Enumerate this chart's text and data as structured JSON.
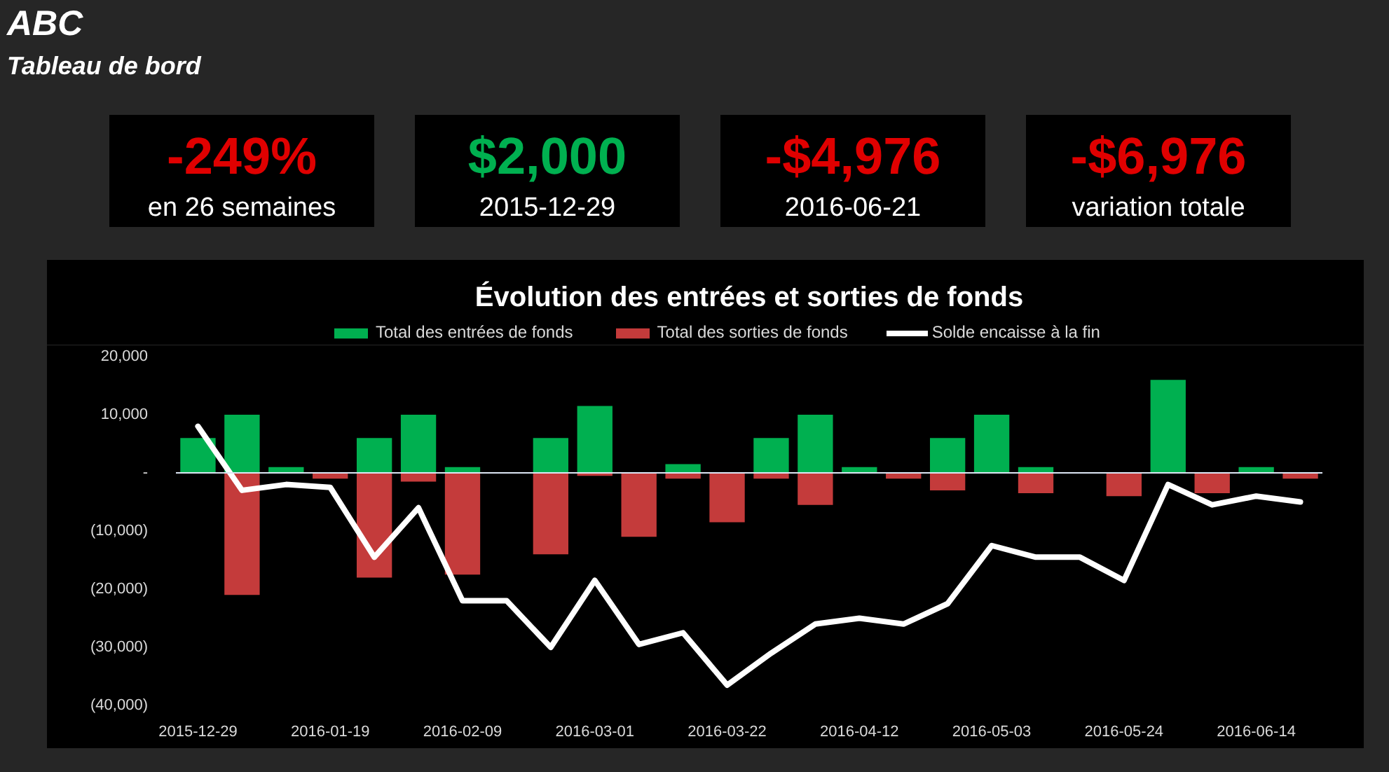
{
  "chart_data": [
    {
      "type": "other",
      "title": "ABC",
      "subtitle": "Tableau de bord"
    },
    {
      "type": "other",
      "title": "-249%",
      "subtitle": "en 26 semaines",
      "color": "#e00000"
    },
    {
      "type": "other",
      "title": "$2,000",
      "subtitle": "2015-12-29",
      "color": "#00b050"
    },
    {
      "type": "other",
      "title": "-$4,976",
      "subtitle": "2016-06-21",
      "color": "#e00000"
    },
    {
      "type": "other",
      "title": "-$6,976",
      "subtitle": "variation totale",
      "color": "#e00000"
    },
    {
      "type": "bar",
      "title": "Évolution des entrées et sorties de fonds",
      "categories": [
        "2015-12-29",
        null,
        null,
        "2016-01-19",
        null,
        null,
        "2016-02-09",
        null,
        null,
        "2016-03-01",
        null,
        null,
        "2016-03-22",
        null,
        null,
        "2016-04-12",
        null,
        null,
        "2016-05-03",
        null,
        null,
        "2016-05-24",
        null,
        null,
        "2016-06-14",
        null
      ],
      "stacked": true,
      "series": [
        {
          "name": "Total des entrées de fonds",
          "color": "#00b050",
          "values": [
            6000,
            10000,
            1000,
            0,
            6000,
            10000,
            1000,
            0,
            6000,
            11500,
            0,
            1500,
            0,
            6000,
            10000,
            1000,
            0,
            6000,
            10000,
            1000,
            0,
            0,
            16000,
            0,
            1000,
            0
          ]
        },
        {
          "name": "Total des sorties de fonds",
          "color": "#c43b3b",
          "values": [
            0,
            -21000,
            0,
            -1000,
            -18000,
            -1500,
            -17500,
            0,
            -14000,
            -500,
            -11000,
            -1000,
            -8500,
            -1000,
            -5500,
            0,
            -1000,
            -3000,
            0,
            -3500,
            0,
            -4000,
            0,
            -3500,
            0,
            -1000
          ]
        },
        {
          "name": "Solde encaisse à la fin",
          "type": "line",
          "color": "#ffffff",
          "values": [
            8000,
            -3000,
            -2000,
            -2500,
            -14500,
            -6000,
            -22000,
            -22000,
            -30000,
            -18500,
            -29500,
            -27500,
            -36500,
            -31000,
            -26000,
            -25000,
            -26000,
            -22500,
            -12500,
            -14500,
            -14500,
            -18500,
            -2000,
            -5500,
            -4000,
            -5000
          ]
        }
      ],
      "ylim": [
        -40000,
        20000
      ],
      "yticks": [
        {
          "value": 20000,
          "label": "20,000"
        },
        {
          "value": 10000,
          "label": "10,000"
        },
        {
          "value": 0,
          "label": "-"
        },
        {
          "value": -10000,
          "label": "(10,000)"
        },
        {
          "value": -20000,
          "label": "(20,000)"
        },
        {
          "value": -30000,
          "label": "(30,000)"
        },
        {
          "value": -40000,
          "label": "(40,000)"
        }
      ],
      "ref_lines": [
        {
          "axis": "y",
          "value": 0,
          "color": "#dde6f4"
        }
      ],
      "legend": "top",
      "grid": false,
      "marker": "none",
      "line_style": "solid"
    }
  ]
}
